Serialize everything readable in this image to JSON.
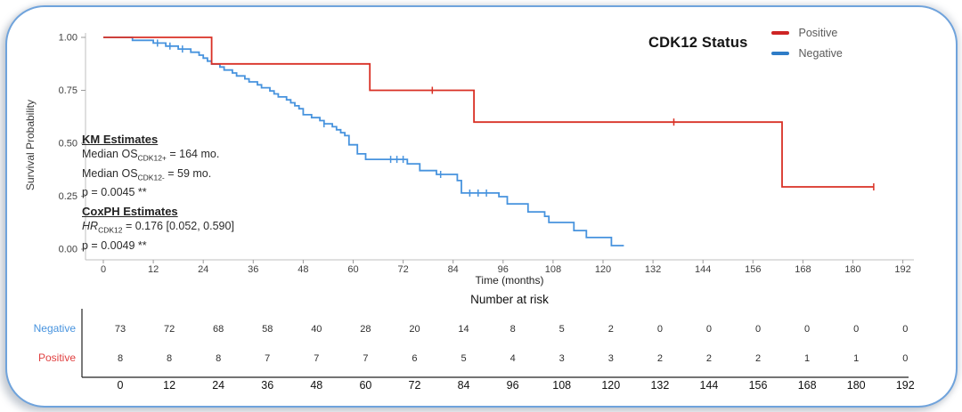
{
  "colors": {
    "positive": "#D93025",
    "negative": "#4793DE",
    "frame_border": "#6FA3DC",
    "axis_line": "#BFBFBF",
    "risk_axis_line": "#222222"
  },
  "legend": {
    "title": "CDK12 Status",
    "items": [
      {
        "label": "Positive",
        "color": "#CE2424"
      },
      {
        "label": "Negative",
        "color": "#2E7CC7"
      }
    ]
  },
  "axes": {
    "y_label": "Survival Probability",
    "x_label": "Time (months)"
  },
  "annotations": {
    "km": {
      "title": "KM Estimates",
      "l1_pre": "Median OS",
      "l1_sub": "CDK12+",
      "l1_post": " = 164 mo.",
      "l2_pre": "Median OS",
      "l2_sub": "CDK12-",
      "l2_post": " = 59 mo.",
      "p": "p = 0.0045 **"
    },
    "cox": {
      "title": "CoxPH Estimates",
      "l1_pre": "HR",
      "l1_sub": "CDK12",
      "l1_post": " = 0.176 [0.052, 0.590]",
      "p": "p = 0.0049 **"
    }
  },
  "chart_data": {
    "type": "line",
    "subtype": "kaplan-meier-step",
    "title": "CDK12 Status",
    "xlabel": "Time (months)",
    "ylabel": "Survival Probability",
    "xlim": [
      0,
      192
    ],
    "ylim": [
      0,
      1
    ],
    "grid": false,
    "legend_position": "top-right",
    "x_ticks": [
      0,
      12,
      24,
      36,
      48,
      60,
      72,
      84,
      96,
      108,
      120,
      132,
      144,
      156,
      168,
      180,
      192
    ],
    "y_ticks": [
      {
        "value": 0.0,
        "label": "0.00"
      },
      {
        "value": 0.25,
        "label": "0.25"
      },
      {
        "value": 0.5,
        "label": "0.50"
      },
      {
        "value": 0.75,
        "label": "0.75"
      },
      {
        "value": 1.0,
        "label": "1.00"
      }
    ],
    "series": [
      {
        "name": "Negative",
        "color": "#4793DE",
        "steps": [
          [
            0,
            1.0
          ],
          [
            7,
            0.986
          ],
          [
            12,
            0.973
          ],
          [
            15,
            0.959
          ],
          [
            18,
            0.945
          ],
          [
            21,
            0.93
          ],
          [
            23,
            0.916
          ],
          [
            24,
            0.902
          ],
          [
            25,
            0.888
          ],
          [
            26,
            0.874
          ],
          [
            28,
            0.86
          ],
          [
            29,
            0.846
          ],
          [
            31,
            0.832
          ],
          [
            32,
            0.818
          ],
          [
            34,
            0.804
          ],
          [
            35,
            0.79
          ],
          [
            37,
            0.776
          ],
          [
            38,
            0.762
          ],
          [
            40,
            0.747
          ],
          [
            41,
            0.733
          ],
          [
            42,
            0.719
          ],
          [
            44,
            0.705
          ],
          [
            45,
            0.691
          ],
          [
            46,
            0.677
          ],
          [
            47,
            0.663
          ],
          [
            48,
            0.635
          ],
          [
            50,
            0.621
          ],
          [
            52,
            0.607
          ],
          [
            53,
            0.592
          ],
          [
            55,
            0.578
          ],
          [
            56,
            0.564
          ],
          [
            57,
            0.55
          ],
          [
            58,
            0.536
          ],
          [
            59,
            0.493
          ],
          [
            61,
            0.45
          ],
          [
            63,
            0.424
          ],
          [
            73,
            0.403
          ],
          [
            76,
            0.371
          ],
          [
            80,
            0.353
          ],
          [
            85,
            0.324
          ],
          [
            86,
            0.265
          ],
          [
            95,
            0.248
          ],
          [
            97,
            0.214
          ],
          [
            102,
            0.176
          ],
          [
            106,
            0.155
          ],
          [
            107,
            0.126
          ],
          [
            113,
            0.088
          ],
          [
            116,
            0.055
          ],
          [
            122,
            0.017
          ]
        ],
        "end_time": 125,
        "censor_times": [
          13,
          16,
          19,
          53,
          69,
          70.5,
          72,
          81,
          88,
          90,
          92
        ]
      },
      {
        "name": "Positive",
        "color": "#D93025",
        "steps": [
          [
            0,
            1.0
          ],
          [
            26,
            0.875
          ],
          [
            64,
            0.75
          ],
          [
            89,
            0.6
          ],
          [
            163,
            0.294
          ]
        ],
        "end_time": 185,
        "censor_times": [
          79,
          137,
          185
        ]
      }
    ],
    "risk_table": {
      "title": "Number at risk",
      "times": [
        0,
        12,
        24,
        36,
        48,
        60,
        72,
        84,
        96,
        108,
        120,
        132,
        144,
        156,
        168,
        180,
        192
      ],
      "rows": [
        {
          "name": "Negative",
          "color": "#4793DE",
          "counts": [
            73,
            72,
            68,
            58,
            40,
            28,
            20,
            14,
            8,
            5,
            2,
            0,
            0,
            0,
            0,
            0,
            0
          ]
        },
        {
          "name": "Positive",
          "color": "#E04040",
          "counts": [
            8,
            8,
            8,
            7,
            7,
            7,
            6,
            5,
            4,
            3,
            3,
            2,
            2,
            2,
            1,
            1,
            0
          ]
        }
      ]
    }
  }
}
